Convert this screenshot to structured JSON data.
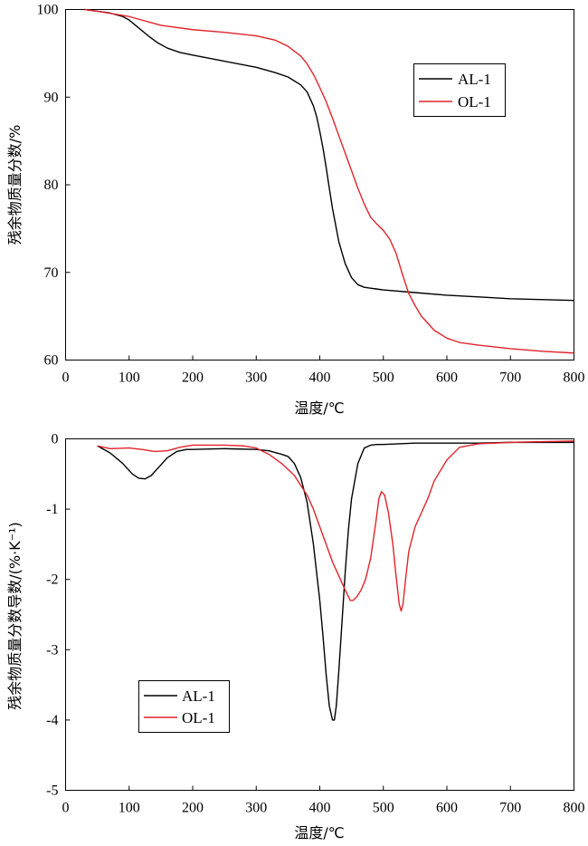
{
  "colors": {
    "AL-1": "#000000",
    "OL-1": "#e0242b"
  },
  "chart_data": [
    {
      "type": "line",
      "xlabel": "温度/℃",
      "ylabel": "残余物质量分数/%",
      "xlim": [
        0,
        800
      ],
      "ylim": [
        60,
        100
      ],
      "xticks": [
        0,
        100,
        200,
        300,
        400,
        500,
        600,
        700,
        800
      ],
      "yticks": [
        60,
        70,
        80,
        90,
        100
      ],
      "legend": {
        "position": "top-right",
        "entries": [
          "AL-1",
          "OL-1"
        ]
      },
      "series": [
        {
          "name": "AL-1",
          "x": [
            30,
            50,
            70,
            90,
            100,
            115,
            130,
            145,
            160,
            180,
            200,
            250,
            300,
            330,
            350,
            370,
            380,
            390,
            395,
            400,
            405,
            410,
            415,
            420,
            430,
            440,
            450,
            460,
            470,
            480,
            490,
            500,
            550,
            600,
            650,
            700,
            800
          ],
          "y": [
            100,
            99.8,
            99.6,
            99.2,
            98.8,
            97.9,
            97.0,
            96.2,
            95.6,
            95.1,
            94.8,
            94.1,
            93.4,
            92.8,
            92.3,
            91.4,
            90.6,
            89.0,
            87.8,
            86.1,
            84.2,
            82.0,
            79.6,
            77.3,
            73.5,
            71.0,
            69.4,
            68.6,
            68.3,
            68.2,
            68.1,
            68.0,
            67.7,
            67.4,
            67.2,
            67.0,
            66.8
          ]
        },
        {
          "name": "OL-1",
          "x": [
            30,
            50,
            100,
            150,
            200,
            250,
            300,
            330,
            350,
            370,
            380,
            390,
            400,
            410,
            420,
            430,
            440,
            450,
            460,
            470,
            480,
            490,
            500,
            510,
            520,
            530,
            540,
            550,
            560,
            580,
            600,
            620,
            650,
            700,
            750,
            800
          ],
          "y": [
            100,
            99.8,
            99.2,
            98.2,
            97.7,
            97.4,
            97.0,
            96.5,
            95.8,
            94.7,
            93.8,
            92.6,
            91.1,
            89.5,
            87.6,
            85.6,
            83.6,
            81.6,
            79.6,
            77.8,
            76.3,
            75.5,
            74.8,
            73.8,
            72.2,
            69.8,
            67.6,
            66.2,
            65.0,
            63.4,
            62.5,
            62.0,
            61.7,
            61.3,
            61.0,
            60.8
          ]
        }
      ]
    },
    {
      "type": "line",
      "xlabel": "温度/℃",
      "ylabel": "残余物质量分数导数/(%·K⁻¹)",
      "xlim": [
        0,
        800
      ],
      "ylim": [
        -5,
        0
      ],
      "xticks": [
        0,
        100,
        200,
        300,
        400,
        500,
        600,
        700,
        800
      ],
      "yticks": [
        0,
        -1,
        -2,
        -3,
        -4,
        -5
      ],
      "legend": {
        "position": "bottom-left",
        "entries": [
          "AL-1",
          "OL-1"
        ]
      },
      "series": [
        {
          "name": "AL-1",
          "x": [
            50,
            70,
            90,
            105,
            115,
            125,
            135,
            145,
            160,
            175,
            190,
            200,
            250,
            300,
            320,
            340,
            350,
            360,
            370,
            380,
            390,
            400,
            405,
            410,
            415,
            420,
            423,
            426,
            430,
            435,
            440,
            445,
            450,
            460,
            470,
            480,
            490,
            500,
            550,
            600,
            650,
            700,
            750,
            800
          ],
          "y": [
            -0.1,
            -0.2,
            -0.35,
            -0.5,
            -0.56,
            -0.57,
            -0.52,
            -0.42,
            -0.27,
            -0.18,
            -0.15,
            -0.15,
            -0.14,
            -0.15,
            -0.17,
            -0.22,
            -0.25,
            -0.35,
            -0.55,
            -0.9,
            -1.5,
            -2.3,
            -2.8,
            -3.35,
            -3.8,
            -4.0,
            -4.0,
            -3.8,
            -3.3,
            -2.6,
            -1.9,
            -1.3,
            -0.85,
            -0.35,
            -0.13,
            -0.09,
            -0.08,
            -0.08,
            -0.06,
            -0.06,
            -0.06,
            -0.05,
            -0.05,
            -0.05
          ]
        },
        {
          "name": "OL-1",
          "x": [
            50,
            70,
            100,
            120,
            140,
            160,
            180,
            200,
            250,
            280,
            300,
            320,
            340,
            360,
            380,
            390,
            400,
            410,
            420,
            430,
            440,
            448,
            452,
            458,
            465,
            472,
            480,
            488,
            493,
            497,
            502,
            508,
            515,
            520,
            525,
            528,
            531,
            535,
            540,
            550,
            560,
            570,
            580,
            600,
            620,
            650,
            700,
            800
          ],
          "y": [
            -0.1,
            -0.14,
            -0.13,
            -0.15,
            -0.18,
            -0.17,
            -0.12,
            -0.09,
            -0.09,
            -0.1,
            -0.13,
            -0.22,
            -0.35,
            -0.52,
            -0.8,
            -1.0,
            -1.25,
            -1.5,
            -1.75,
            -1.95,
            -2.15,
            -2.3,
            -2.3,
            -2.25,
            -2.15,
            -2.0,
            -1.7,
            -1.2,
            -0.85,
            -0.75,
            -0.8,
            -1.05,
            -1.5,
            -1.95,
            -2.35,
            -2.45,
            -2.35,
            -2.0,
            -1.6,
            -1.25,
            -1.05,
            -0.85,
            -0.6,
            -0.3,
            -0.12,
            -0.07,
            -0.05,
            -0.03
          ]
        }
      ]
    }
  ]
}
